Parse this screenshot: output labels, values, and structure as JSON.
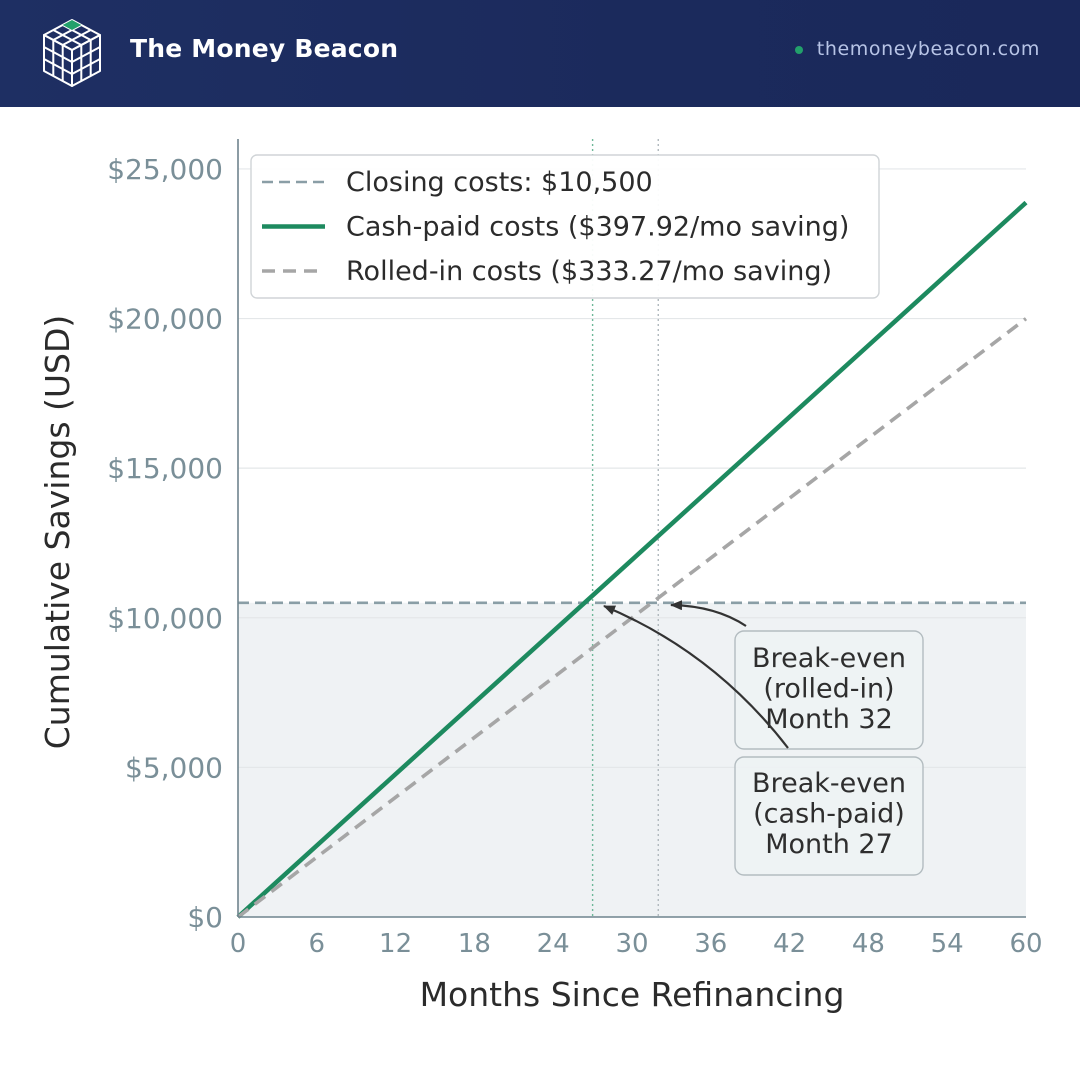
{
  "header": {
    "brand_name": "The Money Beacon",
    "site_url": "themoneybeacon.com",
    "logo_icon": "cube-grid-icon",
    "accent_color": "#1d8a5f",
    "background_color": "#1e2f63"
  },
  "chart_data": {
    "type": "line",
    "title": "",
    "xlabel": "Months Since Refinancing",
    "ylabel": "Cumulative Savings (USD)",
    "xlim": [
      0,
      60
    ],
    "ylim": [
      0,
      26000
    ],
    "x_ticks": [
      0,
      6,
      12,
      18,
      24,
      30,
      36,
      42,
      48,
      54,
      60
    ],
    "y_ticks": [
      0,
      5000,
      10000,
      15000,
      20000,
      25000
    ],
    "y_tick_labels": [
      "$0",
      "$5,000",
      "$10,000",
      "$15,000",
      "$20,000",
      "$25,000"
    ],
    "grid": true,
    "legend_position": "top-left",
    "series": [
      {
        "name": "Closing costs: $10,500",
        "style": "dashed",
        "color": "#8a9ea6",
        "x": [
          0,
          60
        ],
        "y": [
          10500,
          10500
        ]
      },
      {
        "name": "Cash-paid costs ($397.92/mo saving)",
        "style": "solid",
        "color": "#1d8a5f",
        "x": [
          0,
          60
        ],
        "y": [
          0,
          23875.2
        ]
      },
      {
        "name": "Rolled-in costs ($333.27/mo saving)",
        "style": "dashed",
        "color": "#a6a6a6",
        "x": [
          0,
          60
        ],
        "y": [
          0,
          19996.2
        ]
      }
    ],
    "breakeven_lines": [
      {
        "x": 27,
        "color": "#6fb89a"
      },
      {
        "x": 32,
        "color": "#b0b8bd"
      }
    ],
    "shaded_region": {
      "y_from": 0,
      "y_to": 10500,
      "color": "#eff2f4"
    },
    "annotations": [
      {
        "lines": [
          "Break-even",
          "(rolled-in)",
          "Month 32"
        ],
        "point": {
          "x": 32,
          "y": 10500
        }
      },
      {
        "lines": [
          "Break-even",
          "(cash-paid)",
          "Month 27"
        ],
        "point": {
          "x": 27,
          "y": 10500
        }
      }
    ]
  }
}
